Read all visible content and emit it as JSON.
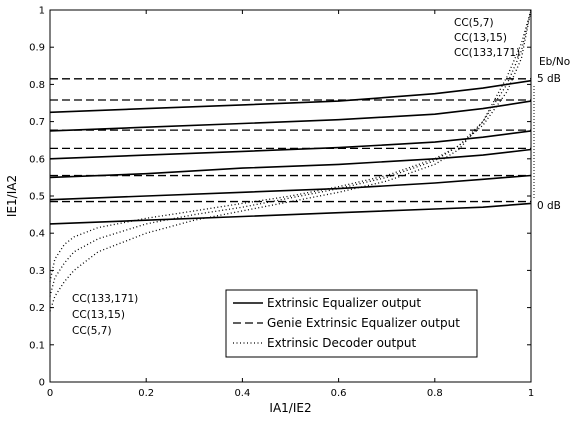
{
  "chart_data": {
    "type": "line",
    "xlabel": "IA1/IE2",
    "ylabel": "IE1/IA2",
    "xlim": [
      0,
      1
    ],
    "ylim": [
      0,
      1
    ],
    "x_ticks": [
      "0",
      "0.2",
      "0.4",
      "0.6",
      "0.8",
      "1"
    ],
    "y_ticks": [
      "0",
      "0.1",
      "0.2",
      "0.3",
      "0.4",
      "0.5",
      "0.6",
      "0.7",
      "0.8",
      "0.9",
      "1"
    ],
    "grid": false,
    "legend_position": "bottom-right",
    "legend": [
      {
        "label": "Extrinsic Equalizer output",
        "style": "solid"
      },
      {
        "label": "Genie Extrinsic Equalizer output",
        "style": "dashed"
      },
      {
        "label": "Extrinsic Decoder output",
        "style": "dotted"
      }
    ],
    "equalizer_curves": [
      {
        "x": [
          0,
          0.2,
          0.4,
          0.6,
          0.8,
          0.9,
          1.0
        ],
        "y": [
          0.425,
          0.435,
          0.445,
          0.455,
          0.465,
          0.47,
          0.48
        ]
      },
      {
        "x": [
          0,
          0.2,
          0.4,
          0.6,
          0.8,
          0.9,
          1.0
        ],
        "y": [
          0.49,
          0.5,
          0.51,
          0.52,
          0.535,
          0.545,
          0.555
        ]
      },
      {
        "x": [
          0,
          0.2,
          0.4,
          0.6,
          0.8,
          0.9,
          1.0
        ],
        "y": [
          0.55,
          0.56,
          0.575,
          0.585,
          0.6,
          0.61,
          0.625
        ]
      },
      {
        "x": [
          0,
          0.2,
          0.4,
          0.6,
          0.8,
          0.9,
          1.0
        ],
        "y": [
          0.6,
          0.61,
          0.62,
          0.63,
          0.645,
          0.658,
          0.675
        ]
      },
      {
        "x": [
          0,
          0.2,
          0.4,
          0.6,
          0.8,
          0.9,
          1.0
        ],
        "y": [
          0.675,
          0.685,
          0.695,
          0.705,
          0.72,
          0.735,
          0.755
        ]
      },
      {
        "x": [
          0,
          0.2,
          0.4,
          0.6,
          0.8,
          0.9,
          1.0
        ],
        "y": [
          0.725,
          0.735,
          0.745,
          0.755,
          0.775,
          0.79,
          0.81
        ]
      }
    ],
    "genie_levels": [
      0.485,
      0.555,
      0.628,
      0.677,
      0.758,
      0.815
    ],
    "decoder_curves": [
      {
        "name": "CC(5,7)",
        "x": [
          0,
          0.01,
          0.03,
          0.05,
          0.1,
          0.2,
          0.3,
          0.4,
          0.5,
          0.6,
          0.7,
          0.8,
          0.85,
          0.9,
          0.95,
          0.98,
          1.0
        ],
        "y": [
          0.27,
          0.33,
          0.37,
          0.39,
          0.415,
          0.44,
          0.46,
          0.48,
          0.5,
          0.525,
          0.555,
          0.6,
          0.635,
          0.69,
          0.78,
          0.87,
          1.0
        ]
      },
      {
        "name": "CC(13,15)",
        "x": [
          0,
          0.01,
          0.03,
          0.05,
          0.1,
          0.2,
          0.3,
          0.4,
          0.5,
          0.6,
          0.7,
          0.8,
          0.85,
          0.9,
          0.95,
          0.98,
          1.0
        ],
        "y": [
          0.23,
          0.28,
          0.32,
          0.35,
          0.385,
          0.425,
          0.45,
          0.47,
          0.495,
          0.52,
          0.55,
          0.595,
          0.635,
          0.7,
          0.8,
          0.89,
          1.0
        ]
      },
      {
        "name": "CC(133,171)",
        "x": [
          0,
          0.01,
          0.03,
          0.05,
          0.1,
          0.2,
          0.3,
          0.4,
          0.5,
          0.6,
          0.7,
          0.8,
          0.85,
          0.9,
          0.95,
          0.98,
          1.0
        ],
        "y": [
          0.19,
          0.23,
          0.27,
          0.3,
          0.35,
          0.4,
          0.435,
          0.46,
          0.485,
          0.51,
          0.54,
          0.585,
          0.625,
          0.7,
          0.82,
          0.91,
          1.0
        ]
      }
    ],
    "annotations": {
      "top_right": [
        "CC(5,7)",
        "CC(13,15)",
        "CC(133,171)"
      ],
      "bottom_left": [
        "CC(133,171)",
        "CC(13,15)",
        "CC(5,7)"
      ],
      "ebno_title": "Eb/No",
      "ebno_high": "5 dB",
      "ebno_low": "0 dB"
    }
  }
}
